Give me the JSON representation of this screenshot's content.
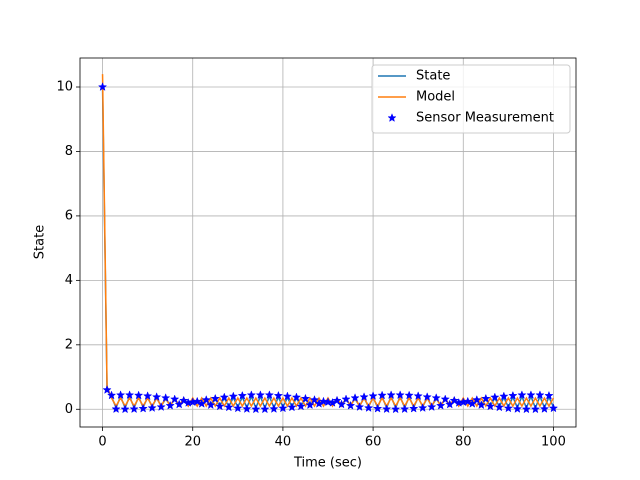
{
  "chart_data": {
    "type": "line",
    "xlabel": "Time (sec)",
    "ylabel": "State",
    "x": [
      0,
      1,
      2,
      3,
      4,
      5,
      6,
      7,
      8,
      9,
      10,
      11,
      12,
      13,
      14,
      15,
      16,
      17,
      18,
      19,
      20,
      21,
      22,
      23,
      24,
      25,
      26,
      27,
      28,
      29,
      30,
      31,
      32,
      33,
      34,
      35,
      36,
      37,
      38,
      39,
      40,
      41,
      42,
      43,
      44,
      45,
      46,
      47,
      48,
      49,
      50,
      51,
      52,
      53,
      54,
      55,
      56,
      57,
      58,
      59,
      60,
      61,
      62,
      63,
      64,
      65,
      66,
      67,
      68,
      69,
      70,
      71,
      72,
      73,
      74,
      75,
      76,
      77,
      78,
      79,
      80,
      81,
      82,
      83,
      84,
      85,
      86,
      87,
      88,
      89,
      90,
      91,
      92,
      93,
      94,
      95,
      96,
      97,
      98,
      99,
      100
    ],
    "series": [
      {
        "name": "State",
        "color": "#1f77b4",
        "style": "line",
        "values": [
          10,
          0.62,
          0.39,
          0.045,
          0.4,
          0.04,
          0.4,
          0.045,
          0.39,
          0.06,
          0.37,
          0.08,
          0.35,
          0.1,
          0.32,
          0.13,
          0.29,
          0.16,
          0.26,
          0.2,
          0.22,
          0.24,
          0.18,
          0.27,
          0.15,
          0.3,
          0.12,
          0.34,
          0.09,
          0.36,
          0.07,
          0.38,
          0.05,
          0.4,
          0.04,
          0.4,
          0.04,
          0.4,
          0.05,
          0.38,
          0.07,
          0.36,
          0.09,
          0.34,
          0.12,
          0.3,
          0.15,
          0.27,
          0.18,
          0.24,
          0.22,
          0.2,
          0.26,
          0.16,
          0.29,
          0.13,
          0.32,
          0.1,
          0.35,
          0.08,
          0.37,
          0.06,
          0.39,
          0.045,
          0.4,
          0.04,
          0.4,
          0.045,
          0.39,
          0.06,
          0.37,
          0.08,
          0.35,
          0.1,
          0.32,
          0.13,
          0.29,
          0.16,
          0.26,
          0.2,
          0.22,
          0.24,
          0.18,
          0.27,
          0.15,
          0.3,
          0.12,
          0.34,
          0.09,
          0.36,
          0.07,
          0.38,
          0.05,
          0.4,
          0.04,
          0.4,
          0.04,
          0.4,
          0.05,
          0.38,
          0.07
        ]
      },
      {
        "name": "Model",
        "color": "#ff7f0e",
        "style": "line",
        "values": [
          10.4,
          0.7,
          0.35,
          0.1,
          0.35,
          0.1,
          0.35,
          0.1,
          0.35,
          0.1,
          0.35,
          0.1,
          0.35,
          0.1,
          0.35,
          0.1,
          0.35,
          0.1,
          0.35,
          0.1,
          0.35,
          0.1,
          0.35,
          0.1,
          0.35,
          0.1,
          0.35,
          0.1,
          0.35,
          0.1,
          0.35,
          0.1,
          0.35,
          0.1,
          0.35,
          0.1,
          0.35,
          0.1,
          0.35,
          0.1,
          0.35,
          0.1,
          0.35,
          0.1,
          0.35,
          0.1,
          0.35,
          0.1,
          0.35,
          0.1,
          0.35,
          0.1,
          0.35,
          0.1,
          0.35,
          0.1,
          0.35,
          0.1,
          0.35,
          0.1,
          0.35,
          0.1,
          0.35,
          0.1,
          0.35,
          0.1,
          0.35,
          0.1,
          0.35,
          0.1,
          0.35,
          0.1,
          0.35,
          0.1,
          0.35,
          0.1,
          0.35,
          0.1,
          0.35,
          0.1,
          0.35,
          0.1,
          0.35,
          0.1,
          0.35,
          0.1,
          0.35,
          0.1,
          0.35,
          0.1,
          0.35,
          0.1,
          0.35,
          0.1,
          0.35,
          0.1,
          0.35,
          0.1,
          0.35,
          0.1,
          0.35
        ]
      },
      {
        "name": "Sensor Measurement",
        "color": "#0000ff",
        "style": "marker",
        "marker": "*",
        "values": [
          10,
          0.6,
          0.43,
          0.005,
          0.44,
          0,
          0.44,
          0.005,
          0.43,
          0.02,
          0.41,
          0.04,
          0.38,
          0.07,
          0.35,
          0.11,
          0.31,
          0.15,
          0.27,
          0.2,
          0.22,
          0.24,
          0.17,
          0.29,
          0.13,
          0.33,
          0.09,
          0.37,
          0.06,
          0.4,
          0.03,
          0.42,
          0.01,
          0.44,
          0,
          0.44,
          0,
          0.44,
          0.01,
          0.42,
          0.03,
          0.4,
          0.06,
          0.37,
          0.09,
          0.33,
          0.13,
          0.29,
          0.17,
          0.24,
          0.22,
          0.2,
          0.27,
          0.15,
          0.31,
          0.11,
          0.35,
          0.07,
          0.38,
          0.04,
          0.41,
          0.02,
          0.43,
          0.005,
          0.44,
          0,
          0.44,
          0.005,
          0.43,
          0.02,
          0.41,
          0.04,
          0.38,
          0.07,
          0.35,
          0.11,
          0.31,
          0.15,
          0.27,
          0.2,
          0.22,
          0.24,
          0.17,
          0.29,
          0.13,
          0.33,
          0.09,
          0.37,
          0.06,
          0.4,
          0.03,
          0.42,
          0.01,
          0.44,
          0,
          0.44,
          0,
          0.44,
          0.01,
          0.42,
          0.03
        ]
      }
    ],
    "xlim": [
      -5,
      105
    ],
    "xticks": [
      0,
      20,
      40,
      60,
      80,
      100
    ],
    "ylim": [
      -0.55,
      10.9
    ],
    "yticks": [
      0,
      2,
      4,
      6,
      8,
      10
    ],
    "grid": true,
    "legend": "upper right"
  }
}
